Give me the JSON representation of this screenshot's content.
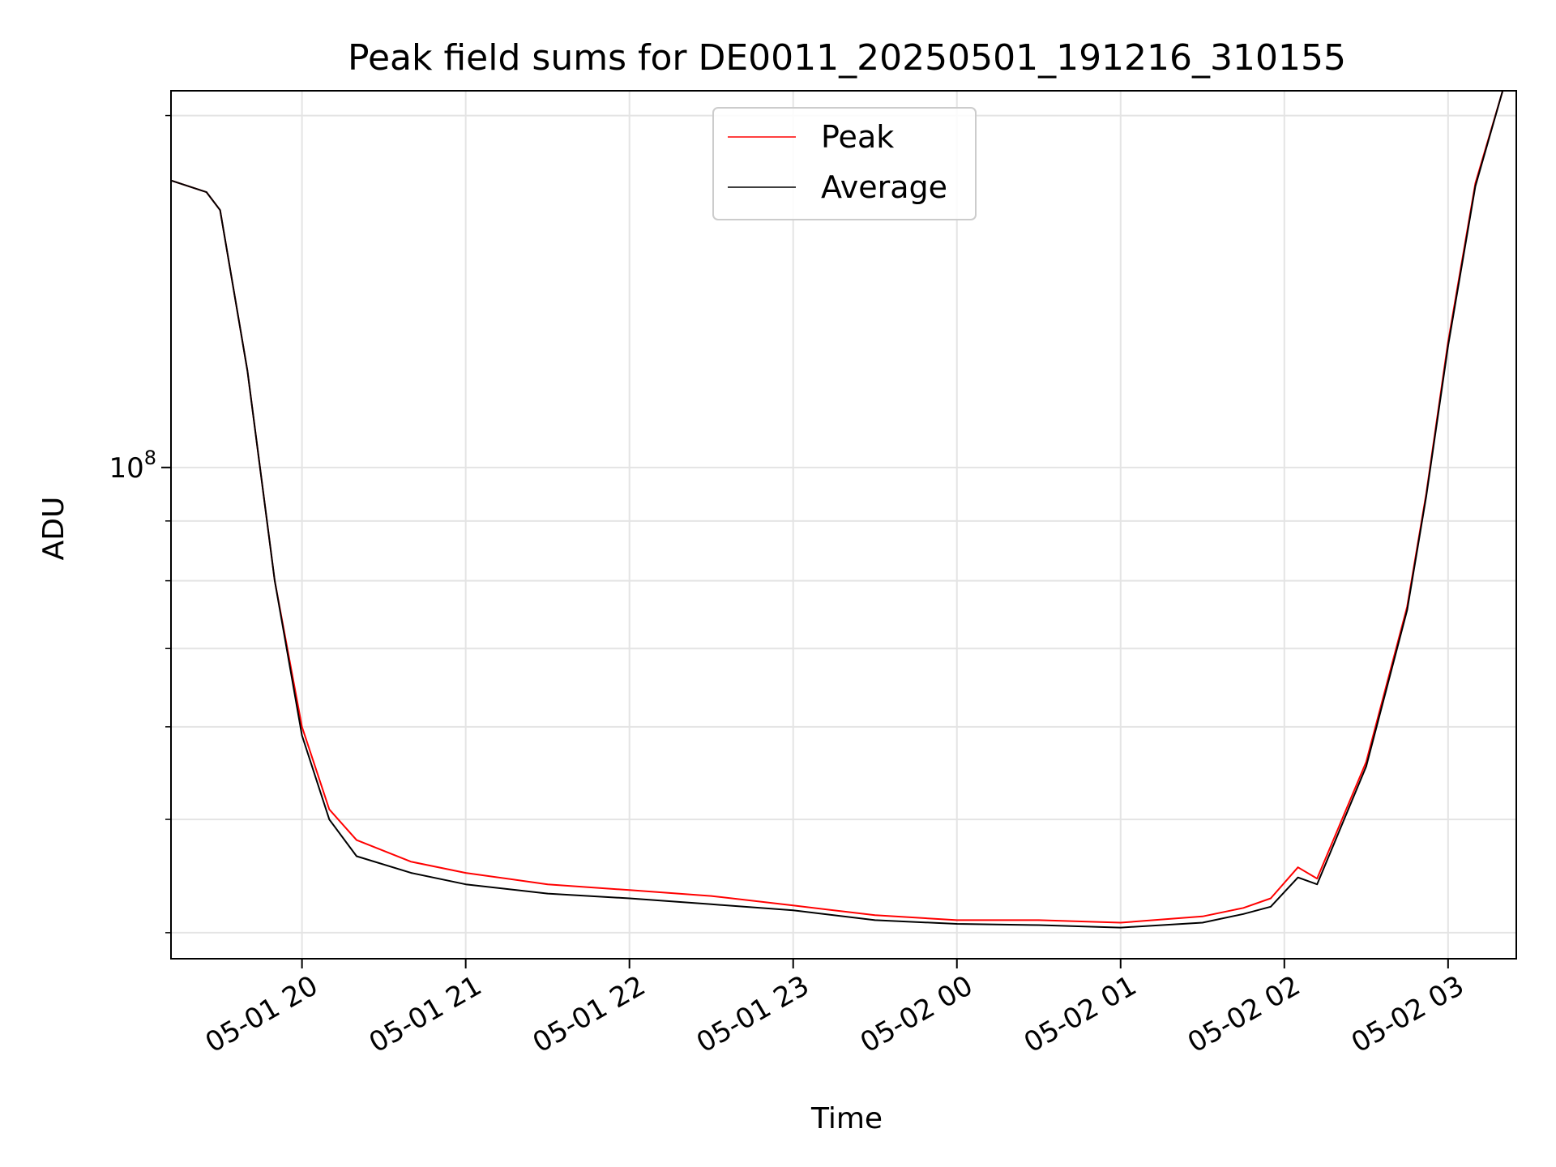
{
  "chart_data": {
    "type": "line",
    "title": "Peak field sums for DE0011_20250501_191216_310155",
    "xlabel": "Time",
    "ylabel": "ADU",
    "yscale": "log",
    "grid": true,
    "legend": "top-center",
    "x_ticks": [
      "05-01 20",
      "05-01 21",
      "05-01 22",
      "05-01 23",
      "05-02 00",
      "05-02 01",
      "05-02 02",
      "05-02 03"
    ],
    "y_ticks": [
      {
        "base": "10",
        "exp": "8",
        "value": 100000000
      }
    ],
    "xlim": [
      "2025-05-01 19:12",
      "2025-05-02 03:25"
    ],
    "ylim": [
      38000000,
      210000000
    ],
    "series": [
      {
        "name": "Peak",
        "color": "#ff0000",
        "x": [
          "2025-05-01 19:12",
          "2025-05-01 19:25",
          "2025-05-01 19:30",
          "2025-05-01 19:40",
          "2025-05-01 19:50",
          "2025-05-01 20:00",
          "2025-05-01 20:10",
          "2025-05-01 20:20",
          "2025-05-01 20:40",
          "2025-05-01 21:00",
          "2025-05-01 21:30",
          "2025-05-01 22:00",
          "2025-05-01 22:30",
          "2025-05-01 23:00",
          "2025-05-01 23:30",
          "2025-05-02 00:00",
          "2025-05-02 00:30",
          "2025-05-02 01:00",
          "2025-05-02 01:30",
          "2025-05-02 01:45",
          "2025-05-02 01:55",
          "2025-05-02 02:05",
          "2025-05-02 02:12",
          "2025-05-02 02:30",
          "2025-05-02 02:45",
          "2025-05-02 02:52",
          "2025-05-02 03:00",
          "2025-05-02 03:10",
          "2025-05-02 03:20"
        ],
        "y": [
          176000000,
          172000000,
          166000000,
          121000000,
          80000000,
          60000000,
          51000000,
          48000000,
          46000000,
          45000000,
          44000000,
          43500000,
          43000000,
          42200000,
          41400000,
          41000000,
          41000000,
          40800000,
          41300000,
          42000000,
          42800000,
          45500000,
          44500000,
          56000000,
          76000000,
          95000000,
          128000000,
          175000000,
          210000000
        ]
      },
      {
        "name": "Average",
        "color": "#000000",
        "x": [
          "2025-05-01 19:12",
          "2025-05-01 19:25",
          "2025-05-01 19:30",
          "2025-05-01 19:40",
          "2025-05-01 19:50",
          "2025-05-01 20:00",
          "2025-05-01 20:10",
          "2025-05-01 20:20",
          "2025-05-01 20:40",
          "2025-05-01 21:00",
          "2025-05-01 21:30",
          "2025-05-01 22:00",
          "2025-05-01 22:30",
          "2025-05-01 23:00",
          "2025-05-01 23:30",
          "2025-05-02 00:00",
          "2025-05-02 00:30",
          "2025-05-02 01:00",
          "2025-05-02 01:30",
          "2025-05-02 01:45",
          "2025-05-02 01:55",
          "2025-05-02 02:05",
          "2025-05-02 02:12",
          "2025-05-02 02:30",
          "2025-05-02 02:45",
          "2025-05-02 02:52",
          "2025-05-02 03:00",
          "2025-05-02 03:10",
          "2025-05-02 03:20"
        ],
        "y": [
          176000000,
          172000000,
          166000000,
          121000000,
          80000000,
          59000000,
          50000000,
          46500000,
          45000000,
          44000000,
          43200000,
          42800000,
          42300000,
          41800000,
          41000000,
          40700000,
          40600000,
          40400000,
          40800000,
          41500000,
          42100000,
          44600000,
          44000000,
          55500000,
          75500000,
          94500000,
          127000000,
          174000000,
          210000000
        ]
      }
    ]
  }
}
